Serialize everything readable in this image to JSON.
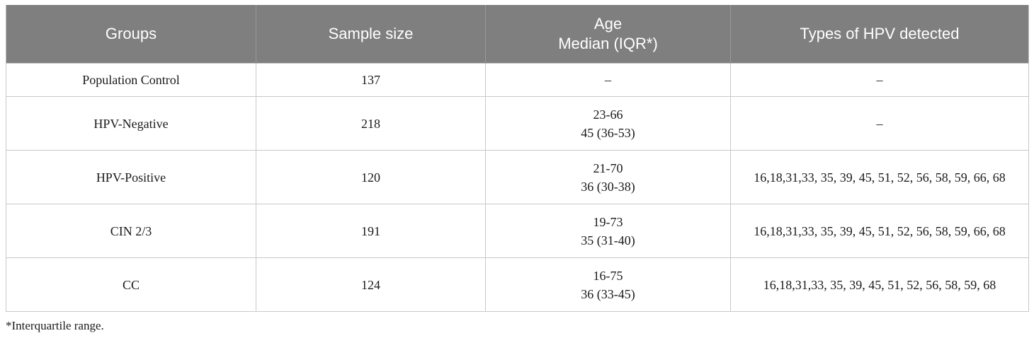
{
  "table": {
    "headers": {
      "groups": "Groups",
      "sample_size": "Sample size",
      "age_line1": "Age",
      "age_line2": "Median (IQR*)",
      "hpv_types": "Types of HPV detected"
    },
    "rows": [
      {
        "group": "Population Control",
        "sample_size": "137",
        "age_range": "–",
        "age_median": "",
        "hpv_types": "–"
      },
      {
        "group": "HPV-Negative",
        "sample_size": "218",
        "age_range": "23-66",
        "age_median": "45 (36-53)",
        "hpv_types": "–"
      },
      {
        "group": "HPV-Positive",
        "sample_size": "120",
        "age_range": "21-70",
        "age_median": "36 (30-38)",
        "hpv_types": "16,18,31,33, 35, 39, 45, 51, 52, 56, 58, 59, 66, 68"
      },
      {
        "group": "CIN 2/3",
        "sample_size": "191",
        "age_range": "19-73",
        "age_median": "35 (31-40)",
        "hpv_types": "16,18,31,33, 35, 39, 45, 51, 52, 56, 58, 59, 66, 68"
      },
      {
        "group": "CC",
        "sample_size": "124",
        "age_range": "16-75",
        "age_median": "36 (33-45)",
        "hpv_types": "16,18,31,33, 35, 39, 45, 51, 52, 56, 58, 59, 68"
      }
    ]
  },
  "footnote": "*Interquartile range."
}
